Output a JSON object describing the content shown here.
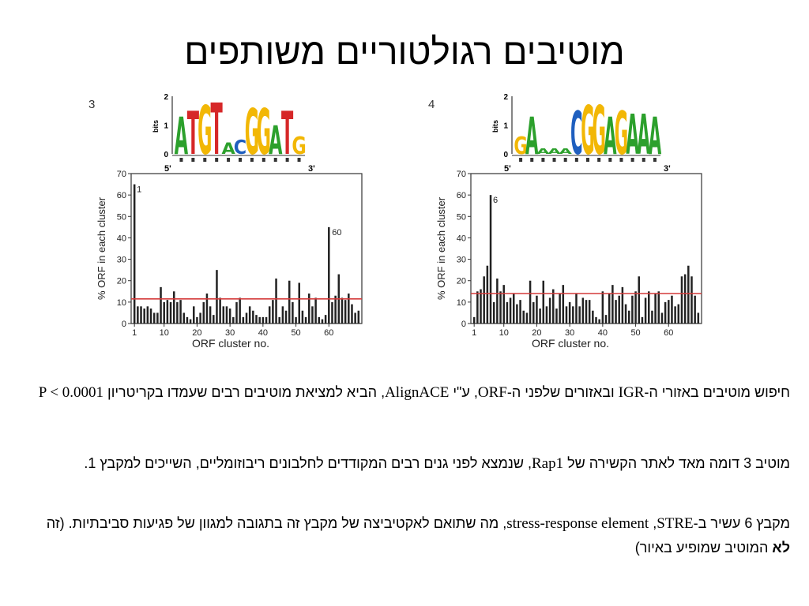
{
  "slide": {
    "title": "מוטיבים רגולטוריים משותפים"
  },
  "paragraphs": {
    "p1": {
      "a": "חיפוש מוטיבים באזורי ה-",
      "a_latin": "IGR",
      "b": " ובאזורים שלפני ה-",
      "b_latin": "ORF",
      "c": ", ע\"י ",
      "c_latin": "AlignACE",
      "d": ", הביא למציאת מוטיבים רבים שעמדו בקריטריון ",
      "d_latin": "P < 0.0001"
    },
    "p2": {
      "a": "מוטיב 3 דומה מאד לאתר הקשירה של ",
      "a_latin": "Rap1",
      "b": ", שנמצא לפני גנים רבים המקודדים לחלבונים ריבוזומליים, השייכים למקבץ 1."
    },
    "p3": {
      "a": "מקבץ 6 עשיר ב-",
      "a_latin": "STRE",
      "b": ", ",
      "b_latin": "stress-response element",
      "c": ", מה שתואם לאקטיביצה של מקבץ זה בתגובה למגוון של פגיעות סביבתיות. (זה ",
      "bold": "לא",
      "d": " המוטיב שמופיע באיור)"
    }
  },
  "chart_data": [
    {
      "type": "bar",
      "panel_label": "3",
      "ylabel": "% ORF in each cluster",
      "xlabel": "ORF cluster no.",
      "ylim": [
        0,
        70
      ],
      "yticks": [
        0,
        10,
        20,
        30,
        40,
        50,
        60,
        70
      ],
      "xlim": [
        0,
        70
      ],
      "xticks": [
        1,
        10,
        20,
        30,
        40,
        50,
        60
      ],
      "threshold": 11.5,
      "threshold_color": "#d43a3a",
      "bar_color": "#222222",
      "annotations": [
        {
          "cluster": 1,
          "text": "1"
        },
        {
          "cluster": 60,
          "text": "60"
        }
      ],
      "values": [
        65,
        8,
        8,
        7,
        8,
        7,
        5,
        5,
        17,
        10,
        11,
        10,
        15,
        10,
        11,
        5,
        3,
        2,
        8,
        3,
        5,
        10,
        14,
        8,
        4,
        25,
        12,
        8,
        8,
        7,
        3,
        10,
        12,
        3,
        5,
        8,
        6,
        4,
        3,
        3,
        3,
        8,
        11,
        21,
        3,
        8,
        6,
        20,
        10,
        3,
        19,
        6,
        3,
        14,
        8,
        12,
        3,
        2,
        4,
        45,
        10,
        13,
        23,
        12,
        11,
        14,
        9,
        5,
        6
      ],
      "logo": {
        "sequence": [
          "A",
          "T",
          "G",
          "T",
          "A",
          "C",
          "G",
          "G",
          "A",
          "T",
          "G"
        ],
        "heights": [
          1.3,
          1.5,
          1.7,
          1.8,
          0.4,
          0.5,
          1.6,
          1.6,
          1.0,
          1.5,
          0.6
        ],
        "yaxis_label": "bits",
        "yticks": [
          "0",
          "1",
          "2"
        ],
        "start_label": "5'",
        "end_label": "3'"
      }
    },
    {
      "type": "bar",
      "panel_label": "4",
      "ylabel": "% ORF in each cluster",
      "xlabel": "ORF cluster no.",
      "ylim": [
        0,
        70
      ],
      "yticks": [
        0,
        10,
        20,
        30,
        40,
        50,
        60,
        70
      ],
      "xlim": [
        0,
        70
      ],
      "xticks": [
        1,
        10,
        20,
        30,
        40,
        50,
        60
      ],
      "threshold": 14,
      "threshold_color": "#d43a3a",
      "bar_color": "#222222",
      "annotations": [
        {
          "cluster": 6,
          "text": "6"
        }
      ],
      "values": [
        3,
        15,
        16,
        22,
        27,
        60,
        10,
        21,
        15,
        18,
        10,
        12,
        14,
        9,
        11,
        6,
        5,
        20,
        10,
        13,
        7,
        20,
        8,
        12,
        16,
        7,
        14,
        18,
        8,
        10,
        8,
        14,
        8,
        12,
        11,
        11,
        6,
        3,
        2,
        15,
        4,
        14,
        18,
        11,
        13,
        17,
        9,
        6,
        13,
        15,
        22,
        3,
        12,
        15,
        6,
        14,
        15,
        5,
        10,
        11,
        13,
        8,
        9,
        22,
        23,
        27,
        22,
        13,
        5
      ],
      "logo": {
        "sequence": [
          "G",
          "A",
          "A",
          "A",
          "A",
          "C",
          "G",
          "G",
          "A",
          "G",
          "A",
          "A",
          "A"
        ],
        "heights": [
          0.6,
          1.3,
          0.2,
          0.2,
          0.2,
          1.5,
          1.7,
          1.7,
          1.3,
          1.5,
          1.4,
          1.4,
          1.3
        ],
        "yaxis_label": "bits",
        "yticks": [
          "0",
          "1",
          "2"
        ],
        "start_label": "5'",
        "end_label": "3'"
      }
    }
  ]
}
